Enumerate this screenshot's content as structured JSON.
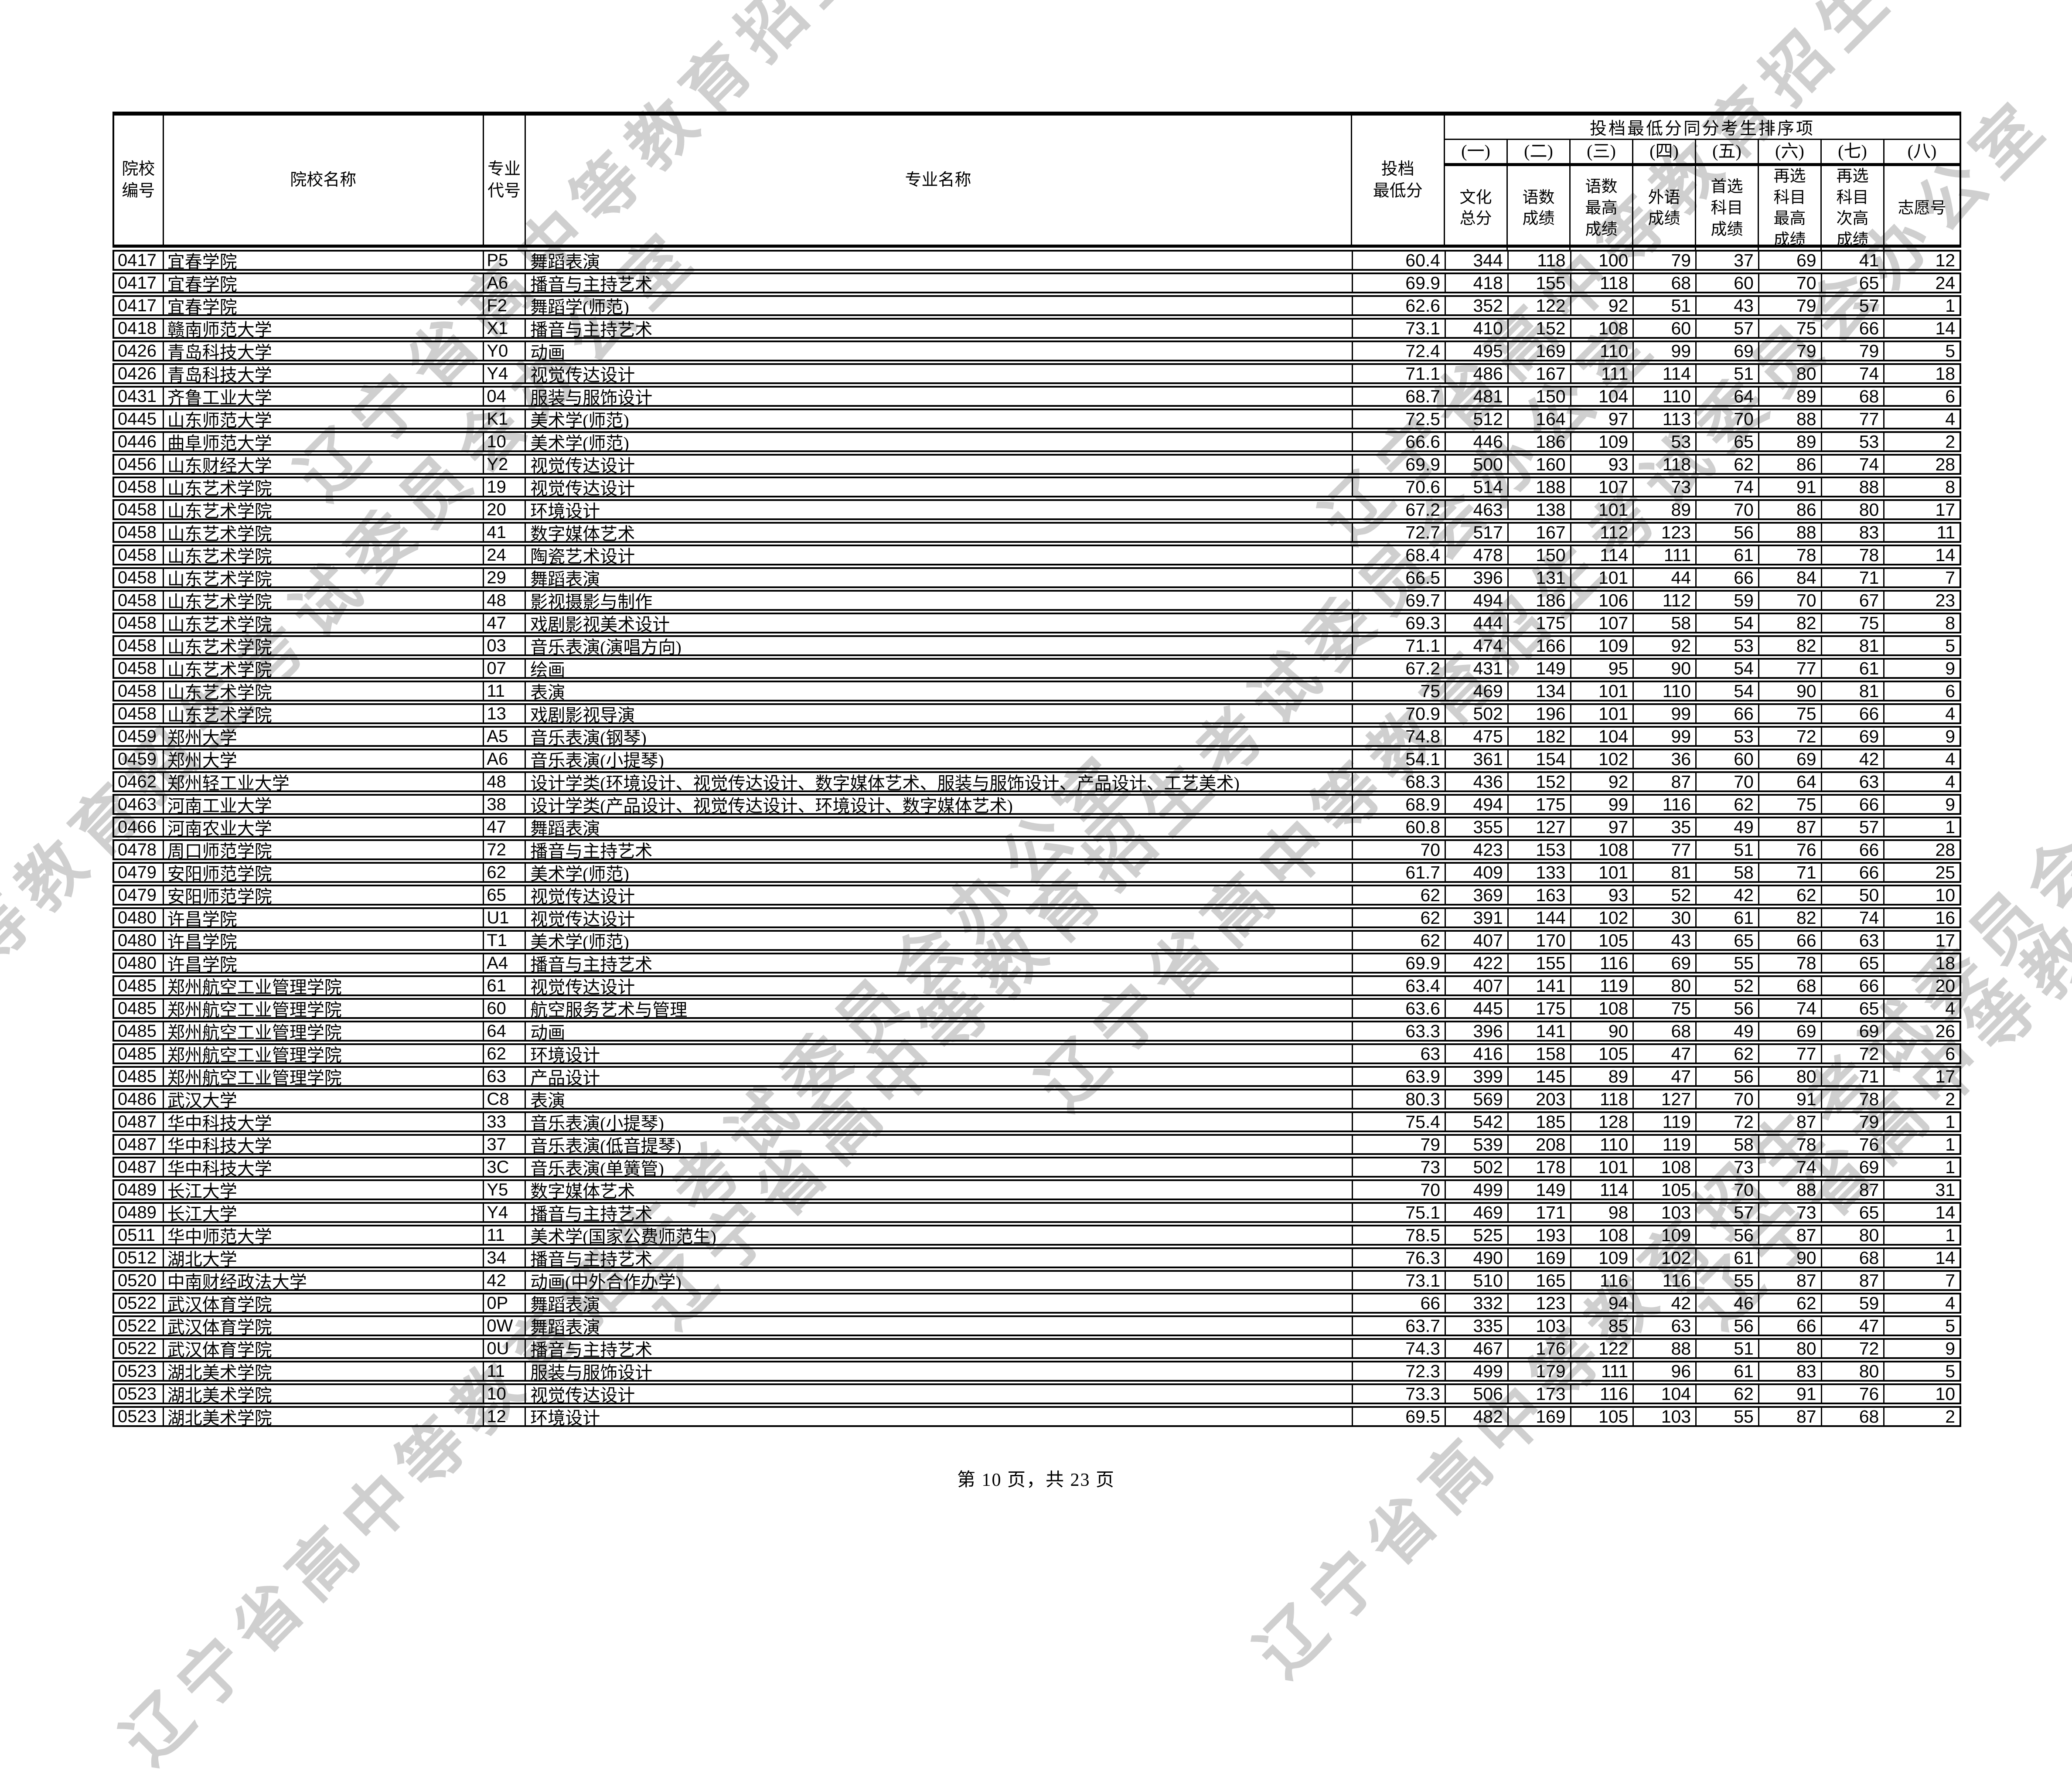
{
  "page": {
    "watermark_text": "辽宁省高中等教育招生考试委员会办公室",
    "footer": "第 10 页，共 23 页"
  },
  "table": {
    "header": {
      "college_code": "院校\n编号",
      "college_name": "院校名称",
      "major_code": "专业\n代号",
      "major_name": "专业名称",
      "min_score": "投档\n最低分",
      "tiebreak_title": "投档最低分同分考生排序项",
      "sub": [
        "(一)",
        "(二)",
        "(三)",
        "(四)",
        "(五)",
        "(六)",
        "(七)",
        "(八)"
      ],
      "cols": [
        "文化\n总分",
        "语数\n成绩",
        "语数\n最高\n成绩",
        "外语\n成绩",
        "首选\n科目\n成绩",
        "再选\n科目\n最高\n成绩",
        "再选\n科目\n次高\n成绩",
        "志愿号"
      ]
    },
    "rows": [
      {
        "code": "0417",
        "school": "宜春学院",
        "mcode": "P5",
        "major": "舞蹈表演",
        "min": "60.4",
        "values": [
          "344",
          "118",
          "100",
          "79",
          "37",
          "69",
          "41",
          "12"
        ]
      },
      {
        "code": "0417",
        "school": "宜春学院",
        "mcode": "A6",
        "major": "播音与主持艺术",
        "min": "69.9",
        "values": [
          "418",
          "155",
          "118",
          "68",
          "60",
          "70",
          "65",
          "24"
        ]
      },
      {
        "code": "0417",
        "school": "宜春学院",
        "mcode": "F2",
        "major": "舞蹈学(师范)",
        "min": "62.6",
        "values": [
          "352",
          "122",
          "92",
          "51",
          "43",
          "79",
          "57",
          "1"
        ]
      },
      {
        "code": "0418",
        "school": "赣南师范大学",
        "mcode": "X1",
        "major": "播音与主持艺术",
        "min": "73.1",
        "values": [
          "410",
          "152",
          "108",
          "60",
          "57",
          "75",
          "66",
          "14"
        ]
      },
      {
        "code": "0426",
        "school": "青岛科技大学",
        "mcode": "Y0",
        "major": "动画",
        "min": "72.4",
        "values": [
          "495",
          "169",
          "110",
          "99",
          "69",
          "79",
          "79",
          "5"
        ]
      },
      {
        "code": "0426",
        "school": "青岛科技大学",
        "mcode": "Y4",
        "major": "视觉传达设计",
        "min": "71.1",
        "values": [
          "486",
          "167",
          "111",
          "114",
          "51",
          "80",
          "74",
          "18"
        ]
      },
      {
        "code": "0431",
        "school": "齐鲁工业大学",
        "mcode": "04",
        "major": "服装与服饰设计",
        "min": "68.7",
        "values": [
          "481",
          "150",
          "104",
          "110",
          "64",
          "89",
          "68",
          "6"
        ]
      },
      {
        "code": "0445",
        "school": "山东师范大学",
        "mcode": "K1",
        "major": "美术学(师范)",
        "min": "72.5",
        "values": [
          "512",
          "164",
          "97",
          "113",
          "70",
          "88",
          "77",
          "4"
        ]
      },
      {
        "code": "0446",
        "school": "曲阜师范大学",
        "mcode": "10",
        "major": "美术学(师范)",
        "min": "66.6",
        "values": [
          "446",
          "186",
          "109",
          "53",
          "65",
          "89",
          "53",
          "2"
        ]
      },
      {
        "code": "0456",
        "school": "山东财经大学",
        "mcode": "Y2",
        "major": "视觉传达设计",
        "min": "69.9",
        "values": [
          "500",
          "160",
          "93",
          "118",
          "62",
          "86",
          "74",
          "28"
        ]
      },
      {
        "code": "0458",
        "school": "山东艺术学院",
        "mcode": "19",
        "major": "视觉传达设计",
        "min": "70.6",
        "values": [
          "514",
          "188",
          "107",
          "73",
          "74",
          "91",
          "88",
          "8"
        ]
      },
      {
        "code": "0458",
        "school": "山东艺术学院",
        "mcode": "20",
        "major": "环境设计",
        "min": "67.2",
        "values": [
          "463",
          "138",
          "101",
          "89",
          "70",
          "86",
          "80",
          "17"
        ]
      },
      {
        "code": "0458",
        "school": "山东艺术学院",
        "mcode": "41",
        "major": "数字媒体艺术",
        "min": "72.7",
        "values": [
          "517",
          "167",
          "112",
          "123",
          "56",
          "88",
          "83",
          "11"
        ]
      },
      {
        "code": "0458",
        "school": "山东艺术学院",
        "mcode": "24",
        "major": "陶瓷艺术设计",
        "min": "68.4",
        "values": [
          "478",
          "150",
          "114",
          "111",
          "61",
          "78",
          "78",
          "14"
        ]
      },
      {
        "code": "0458",
        "school": "山东艺术学院",
        "mcode": "29",
        "major": "舞蹈表演",
        "min": "66.5",
        "values": [
          "396",
          "131",
          "101",
          "44",
          "66",
          "84",
          "71",
          "7"
        ]
      },
      {
        "code": "0458",
        "school": "山东艺术学院",
        "mcode": "48",
        "major": "影视摄影与制作",
        "min": "69.7",
        "values": [
          "494",
          "186",
          "106",
          "112",
          "59",
          "70",
          "67",
          "23"
        ]
      },
      {
        "code": "0458",
        "school": "山东艺术学院",
        "mcode": "47",
        "major": "戏剧影视美术设计",
        "min": "69.3",
        "values": [
          "444",
          "175",
          "107",
          "58",
          "54",
          "82",
          "75",
          "8"
        ]
      },
      {
        "code": "0458",
        "school": "山东艺术学院",
        "mcode": "03",
        "major": "音乐表演(演唱方向)",
        "min": "71.1",
        "values": [
          "474",
          "166",
          "109",
          "92",
          "53",
          "82",
          "81",
          "5"
        ]
      },
      {
        "code": "0458",
        "school": "山东艺术学院",
        "mcode": "07",
        "major": "绘画",
        "min": "67.2",
        "values": [
          "431",
          "149",
          "95",
          "90",
          "54",
          "77",
          "61",
          "9"
        ]
      },
      {
        "code": "0458",
        "school": "山东艺术学院",
        "mcode": "11",
        "major": "表演",
        "min": "75",
        "values": [
          "469",
          "134",
          "101",
          "110",
          "54",
          "90",
          "81",
          "6"
        ]
      },
      {
        "code": "0458",
        "school": "山东艺术学院",
        "mcode": "13",
        "major": "戏剧影视导演",
        "min": "70.9",
        "values": [
          "502",
          "196",
          "101",
          "99",
          "66",
          "75",
          "66",
          "4"
        ]
      },
      {
        "code": "0459",
        "school": "郑州大学",
        "mcode": "A5",
        "major": "音乐表演(钢琴)",
        "min": "74.8",
        "values": [
          "475",
          "182",
          "104",
          "99",
          "53",
          "72",
          "69",
          "9"
        ]
      },
      {
        "code": "0459",
        "school": "郑州大学",
        "mcode": "A6",
        "major": "音乐表演(小提琴)",
        "min": "54.1",
        "values": [
          "361",
          "154",
          "102",
          "36",
          "60",
          "69",
          "42",
          "4"
        ]
      },
      {
        "code": "0462",
        "school": "郑州轻工业大学",
        "mcode": "48",
        "major": "设计学类(环境设计、视觉传达设计、数字媒体艺术、服装与服饰设计、产品设计、工艺美术)",
        "min": "68.3",
        "values": [
          "436",
          "152",
          "92",
          "87",
          "70",
          "64",
          "63",
          "4"
        ]
      },
      {
        "code": "0463",
        "school": "河南工业大学",
        "mcode": "38",
        "major": "设计学类(产品设计、视觉传达设计、环境设计、数字媒体艺术)",
        "min": "68.9",
        "values": [
          "494",
          "175",
          "99",
          "116",
          "62",
          "75",
          "66",
          "9"
        ]
      },
      {
        "code": "0466",
        "school": "河南农业大学",
        "mcode": "47",
        "major": "舞蹈表演",
        "min": "60.8",
        "values": [
          "355",
          "127",
          "97",
          "35",
          "49",
          "87",
          "57",
          "1"
        ]
      },
      {
        "code": "0478",
        "school": "周口师范学院",
        "mcode": "72",
        "major": "播音与主持艺术",
        "min": "70",
        "values": [
          "423",
          "153",
          "108",
          "77",
          "51",
          "76",
          "66",
          "28"
        ]
      },
      {
        "code": "0479",
        "school": "安阳师范学院",
        "mcode": "62",
        "major": "美术学(师范)",
        "min": "61.7",
        "values": [
          "409",
          "133",
          "101",
          "81",
          "58",
          "71",
          "66",
          "25"
        ]
      },
      {
        "code": "0479",
        "school": "安阳师范学院",
        "mcode": "65",
        "major": "视觉传达设计",
        "min": "62",
        "values": [
          "369",
          "163",
          "93",
          "52",
          "42",
          "62",
          "50",
          "10"
        ]
      },
      {
        "code": "0480",
        "school": "许昌学院",
        "mcode": "U1",
        "major": "视觉传达设计",
        "min": "62",
        "values": [
          "391",
          "144",
          "102",
          "30",
          "61",
          "82",
          "74",
          "16"
        ]
      },
      {
        "code": "0480",
        "school": "许昌学院",
        "mcode": "T1",
        "major": "美术学(师范)",
        "min": "62",
        "values": [
          "407",
          "170",
          "105",
          "43",
          "65",
          "66",
          "63",
          "17"
        ]
      },
      {
        "code": "0480",
        "school": "许昌学院",
        "mcode": "A4",
        "major": "播音与主持艺术",
        "min": "69.9",
        "values": [
          "422",
          "155",
          "116",
          "69",
          "55",
          "78",
          "65",
          "18"
        ]
      },
      {
        "code": "0485",
        "school": "郑州航空工业管理学院",
        "mcode": "61",
        "major": "视觉传达设计",
        "min": "63.4",
        "values": [
          "407",
          "141",
          "119",
          "80",
          "52",
          "68",
          "66",
          "20"
        ]
      },
      {
        "code": "0485",
        "school": "郑州航空工业管理学院",
        "mcode": "60",
        "major": "航空服务艺术与管理",
        "min": "63.6",
        "values": [
          "445",
          "175",
          "108",
          "75",
          "56",
          "74",
          "65",
          "4"
        ]
      },
      {
        "code": "0485",
        "school": "郑州航空工业管理学院",
        "mcode": "64",
        "major": "动画",
        "min": "63.3",
        "values": [
          "396",
          "141",
          "90",
          "68",
          "49",
          "69",
          "69",
          "26"
        ]
      },
      {
        "code": "0485",
        "school": "郑州航空工业管理学院",
        "mcode": "62",
        "major": "环境设计",
        "min": "63",
        "values": [
          "416",
          "158",
          "105",
          "47",
          "62",
          "77",
          "72",
          "6"
        ]
      },
      {
        "code": "0485",
        "school": "郑州航空工业管理学院",
        "mcode": "63",
        "major": "产品设计",
        "min": "63.9",
        "values": [
          "399",
          "145",
          "89",
          "47",
          "56",
          "80",
          "71",
          "17"
        ]
      },
      {
        "code": "0486",
        "school": "武汉大学",
        "mcode": "C8",
        "major": "表演",
        "min": "80.3",
        "values": [
          "569",
          "203",
          "118",
          "127",
          "70",
          "91",
          "78",
          "2"
        ]
      },
      {
        "code": "0487",
        "school": "华中科技大学",
        "mcode": "33",
        "major": "音乐表演(小提琴)",
        "min": "75.4",
        "values": [
          "542",
          "185",
          "128",
          "119",
          "72",
          "87",
          "79",
          "1"
        ]
      },
      {
        "code": "0487",
        "school": "华中科技大学",
        "mcode": "37",
        "major": "音乐表演(低音提琴)",
        "min": "79",
        "values": [
          "539",
          "208",
          "110",
          "119",
          "58",
          "78",
          "76",
          "1"
        ]
      },
      {
        "code": "0487",
        "school": "华中科技大学",
        "mcode": "3C",
        "major": "音乐表演(单簧管)",
        "min": "73",
        "values": [
          "502",
          "178",
          "101",
          "108",
          "73",
          "74",
          "69",
          "1"
        ]
      },
      {
        "code": "0489",
        "school": "长江大学",
        "mcode": "Y5",
        "major": "数字媒体艺术",
        "min": "70",
        "values": [
          "499",
          "149",
          "114",
          "105",
          "70",
          "88",
          "87",
          "31"
        ]
      },
      {
        "code": "0489",
        "school": "长江大学",
        "mcode": "Y4",
        "major": "播音与主持艺术",
        "min": "75.1",
        "values": [
          "469",
          "171",
          "98",
          "103",
          "57",
          "73",
          "65",
          "14"
        ]
      },
      {
        "code": "0511",
        "school": "华中师范大学",
        "mcode": "11",
        "major": "美术学(国家公费师范生)",
        "min": "78.5",
        "values": [
          "525",
          "193",
          "108",
          "109",
          "56",
          "87",
          "80",
          "1"
        ]
      },
      {
        "code": "0512",
        "school": "湖北大学",
        "mcode": "34",
        "major": "播音与主持艺术",
        "min": "76.3",
        "values": [
          "490",
          "169",
          "109",
          "102",
          "61",
          "90",
          "68",
          "14"
        ]
      },
      {
        "code": "0520",
        "school": "中南财经政法大学",
        "mcode": "42",
        "major": "动画(中外合作办学)",
        "min": "73.1",
        "values": [
          "510",
          "165",
          "116",
          "116",
          "55",
          "87",
          "87",
          "7"
        ]
      },
      {
        "code": "0522",
        "school": "武汉体育学院",
        "mcode": "0P",
        "major": "舞蹈表演",
        "min": "66",
        "values": [
          "332",
          "123",
          "94",
          "42",
          "46",
          "62",
          "59",
          "4"
        ]
      },
      {
        "code": "0522",
        "school": "武汉体育学院",
        "mcode": "0W",
        "major": "舞蹈表演",
        "min": "63.7",
        "values": [
          "335",
          "103",
          "85",
          "63",
          "56",
          "66",
          "47",
          "5"
        ]
      },
      {
        "code": "0522",
        "school": "武汉体育学院",
        "mcode": "0U",
        "major": "播音与主持艺术",
        "min": "74.3",
        "values": [
          "467",
          "176",
          "122",
          "88",
          "51",
          "80",
          "72",
          "9"
        ]
      },
      {
        "code": "0523",
        "school": "湖北美术学院",
        "mcode": "11",
        "major": "服装与服饰设计",
        "min": "72.3",
        "values": [
          "499",
          "179",
          "111",
          "96",
          "61",
          "83",
          "80",
          "5"
        ]
      },
      {
        "code": "0523",
        "school": "湖北美术学院",
        "mcode": "10",
        "major": "视觉传达设计",
        "min": "73.3",
        "values": [
          "506",
          "173",
          "116",
          "104",
          "62",
          "91",
          "76",
          "10"
        ]
      },
      {
        "code": "0523",
        "school": "湖北美术学院",
        "mcode": "12",
        "major": "环境设计",
        "min": "69.5",
        "values": [
          "482",
          "169",
          "105",
          "103",
          "55",
          "87",
          "68",
          "2"
        ]
      }
    ]
  }
}
